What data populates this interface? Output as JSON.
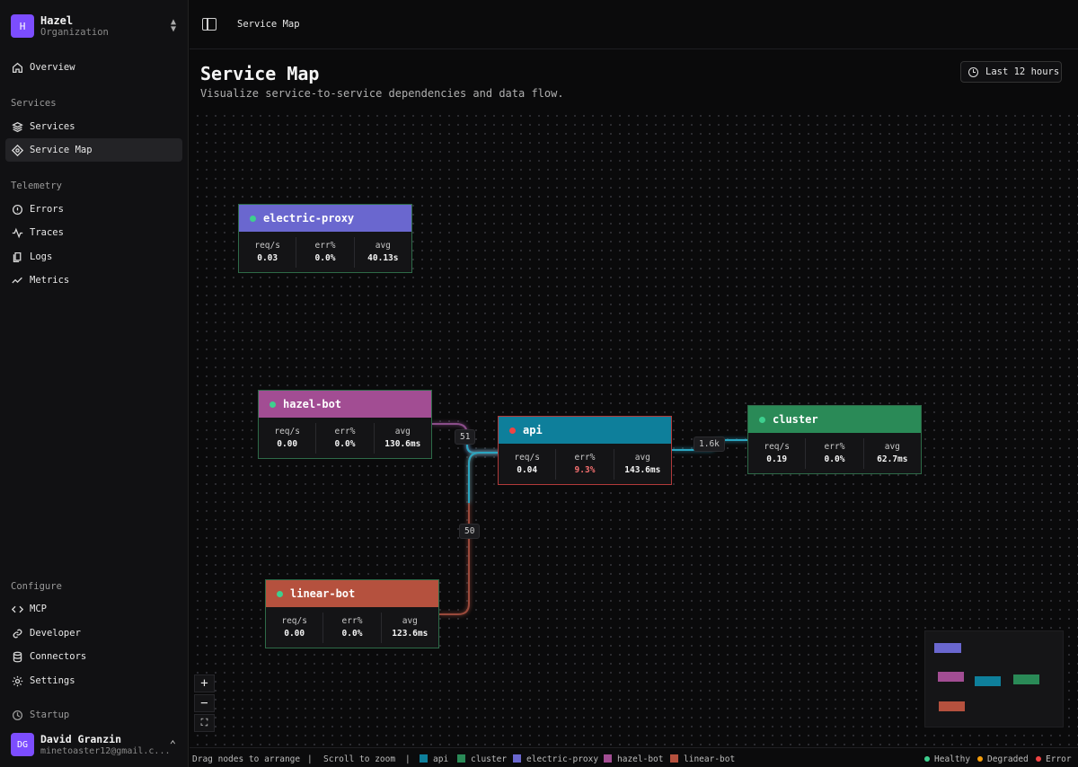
{
  "org": {
    "logo": "H",
    "name": "Hazel",
    "sub": "Organization"
  },
  "nav": {
    "overview": "Overview",
    "services_section": "Services",
    "services": "Services",
    "service_map": "Service Map",
    "telemetry_section": "Telemetry",
    "errors": "Errors",
    "traces": "Traces",
    "logs": "Logs",
    "metrics": "Metrics",
    "configure_section": "Configure",
    "mcp": "MCP",
    "developer": "Developer",
    "connectors": "Connectors",
    "settings": "Settings",
    "plan": "Startup"
  },
  "user": {
    "initials": "DG",
    "name": "David Granzin",
    "email": "minetoaster12@gmail.c..."
  },
  "header": {
    "breadcrumb": "Service Map",
    "title": "Service Map",
    "subtitle": "Visualize service-to-service dependencies and data flow.",
    "time_range": "Last 12 hours"
  },
  "metric_labels": {
    "rps": "req/s",
    "err": "err%",
    "avg": "avg"
  },
  "nodes": {
    "electric_proxy": {
      "name": "electric-proxy",
      "color": "#6a67cf",
      "status": "healthy",
      "rps": "0.03",
      "err": "0.0%",
      "avg": "40.13s"
    },
    "hazel_bot": {
      "name": "hazel-bot",
      "color": "#a24d93",
      "status": "healthy",
      "rps": "0.00",
      "err": "0.0%",
      "avg": "130.6ms"
    },
    "api": {
      "name": "api",
      "color": "#0e7f9b",
      "status": "error",
      "rps": "0.04",
      "err": "9.3%",
      "avg": "143.6ms"
    },
    "cluster": {
      "name": "cluster",
      "color": "#2a8a57",
      "status": "healthy",
      "rps": "0.19",
      "err": "0.0%",
      "avg": "62.7ms"
    },
    "linear_bot": {
      "name": "linear-bot",
      "color": "#b5513e",
      "status": "healthy",
      "rps": "0.00",
      "err": "0.0%",
      "avg": "123.6ms"
    }
  },
  "edges": {
    "hazel_api": "51",
    "linear_api": "50",
    "api_cluster": "1.6k"
  },
  "zoom": {
    "in": "+",
    "out": "−",
    "fit": "⛶"
  },
  "footer": {
    "hint1": "Drag nodes to arrange",
    "sep": "|",
    "hint2": "Scroll to zoom",
    "legend": [
      "api",
      "cluster",
      "electric-proxy",
      "hazel-bot",
      "linear-bot"
    ],
    "legend_colors": [
      "#0e7f9b",
      "#2a8a57",
      "#6a67cf",
      "#a24d93",
      "#b5513e"
    ],
    "status": [
      "Healthy",
      "Degraded",
      "Error"
    ],
    "status_colors": [
      "#3ecf8e",
      "#f59e0b",
      "#ef4444"
    ]
  }
}
